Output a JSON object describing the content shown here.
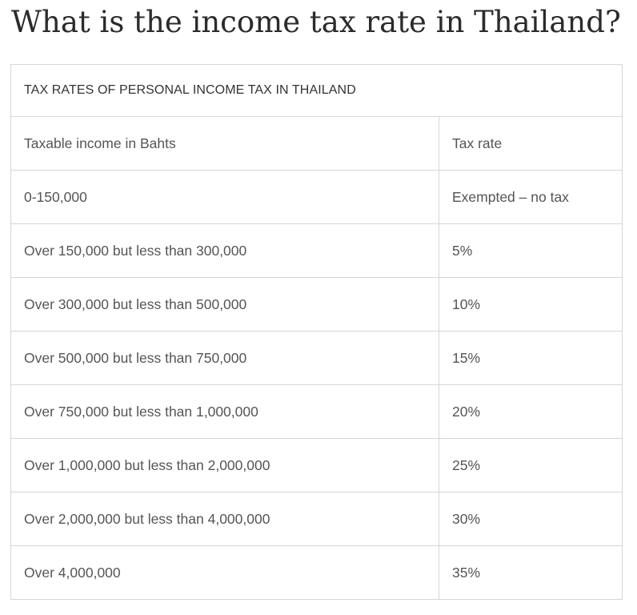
{
  "page": {
    "title": "What is the income tax rate in Thailand?"
  },
  "table": {
    "caption": "TAX RATES OF PERSONAL INCOME TAX IN THAILAND",
    "headers": [
      "Taxable income in Bahts",
      "Tax rate"
    ],
    "rows": [
      [
        "0-150,000",
        "Exempted – no tax"
      ],
      [
        "Over 150,000 but less than 300,000",
        "5%"
      ],
      [
        "Over 300,000 but less than 500,000",
        "10%"
      ],
      [
        "Over 500,000 but less than 750,000",
        "15%"
      ],
      [
        "Over 750,000 but less than 1,000,000",
        "20%"
      ],
      [
        "Over 1,000,000 but less than 2,000,000",
        "25%"
      ],
      [
        "Over 2,000,000 but less than 4,000,000",
        "30%"
      ],
      [
        "Over 4,000,000",
        "35%"
      ]
    ]
  }
}
